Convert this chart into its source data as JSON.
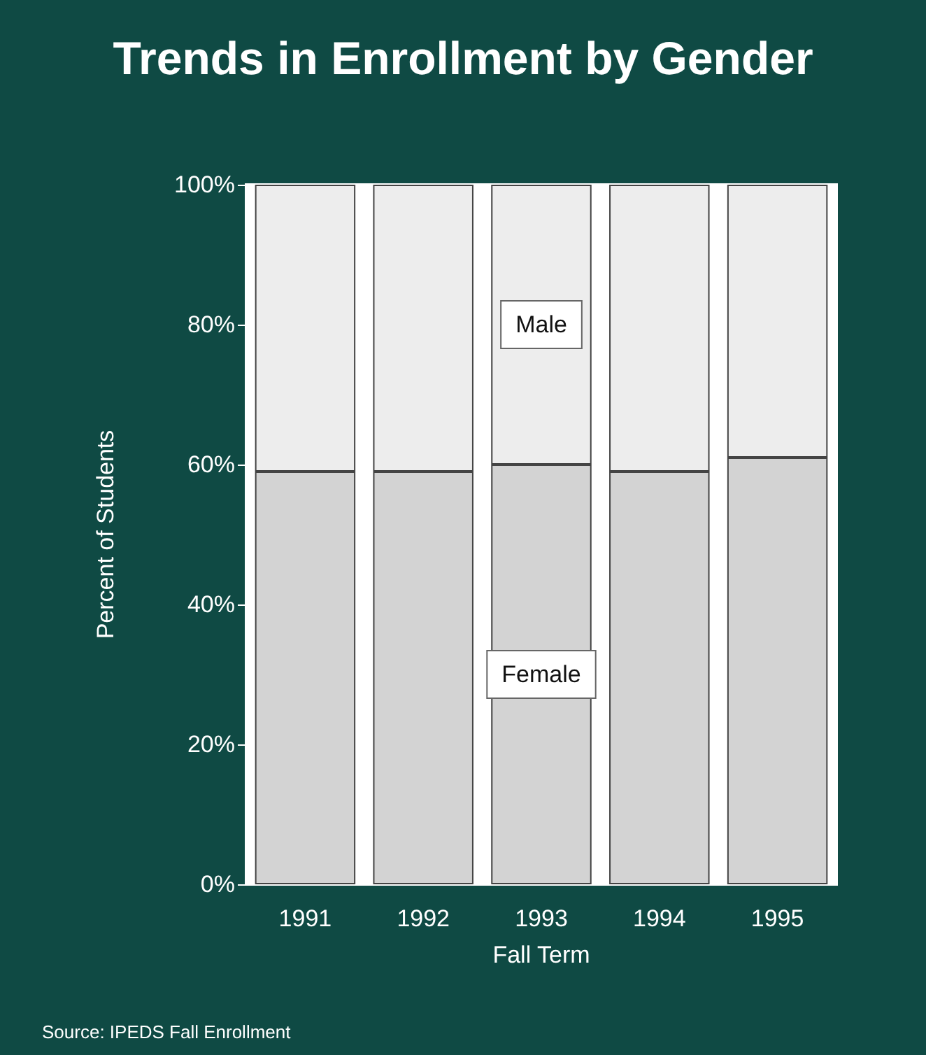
{
  "chart_data": {
    "type": "bar",
    "title": "Trends in Enrollment by Gender",
    "xlabel": "Fall Term",
    "ylabel": "Percent of Students",
    "categories": [
      "1991",
      "1992",
      "1993",
      "1994",
      "1995"
    ],
    "stacked": true,
    "series": [
      {
        "name": "Female",
        "color": "#d3d3d3",
        "values": [
          59,
          59,
          60,
          59,
          61
        ]
      },
      {
        "name": "Male",
        "color": "#ededed",
        "values": [
          41,
          41,
          40,
          41,
          39
        ]
      }
    ],
    "ylim": [
      0,
      100
    ],
    "yticks": [
      {
        "value": 0,
        "label": "0%"
      },
      {
        "value": 20,
        "label": "20%"
      },
      {
        "value": 40,
        "label": "40%"
      },
      {
        "value": 60,
        "label": "60%"
      },
      {
        "value": 80,
        "label": "80%"
      },
      {
        "value": 100,
        "label": "100%"
      }
    ],
    "grid": false,
    "legend": false,
    "annotations": [
      "Source: IPEDS Fall Enrollment"
    ]
  }
}
